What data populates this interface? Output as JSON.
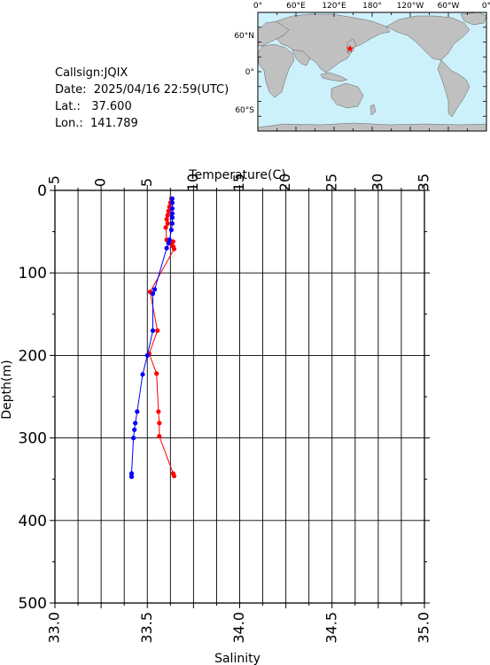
{
  "station": {
    "callsign_label": "Callsign:",
    "callsign": "JQIX",
    "date_label": "Date:",
    "date": "2025/04/16 22:59(UTC)",
    "lat_label": "Lat.:",
    "lat": "37.600",
    "lon_label": "Lon.:",
    "lon": "141.789"
  },
  "map": {
    "top_labels": [
      "0°",
      "60°E",
      "120°E",
      "180°",
      "120°W",
      "60°W",
      "0°"
    ],
    "left_labels": [
      "60°N",
      "0°",
      "60°S"
    ],
    "ocean_color": "#cdf1fb",
    "land_color": "#c0c0c0",
    "marker_color": "#ff0000",
    "marker_icon": "star-icon"
  },
  "chart_data": {
    "type": "line",
    "y_axis": {
      "label": "Depth(m)",
      "range": [
        0,
        500
      ],
      "ticks": [
        0,
        100,
        200,
        300,
        400,
        500
      ],
      "reversed": true
    },
    "x_axis_top": {
      "label": "Temperature(C)",
      "range": [
        -5,
        35
      ],
      "ticks": [
        -5,
        0,
        5,
        10,
        15,
        20,
        25,
        30,
        35
      ]
    },
    "x_axis_bottom": {
      "label": "Salinity",
      "range": [
        33.0,
        35.0
      ],
      "ticks": [
        "33.0",
        "33.5",
        "34.0",
        "34.5",
        "35.0"
      ]
    },
    "grid": true,
    "series": [
      {
        "axis": "temperature",
        "color": "#ff0000",
        "points": [
          {
            "x": 7.6,
            "y": 10
          },
          {
            "x": 7.5,
            "y": 15
          },
          {
            "x": 7.4,
            "y": 20
          },
          {
            "x": 7.3,
            "y": 25
          },
          {
            "x": 7.2,
            "y": 30
          },
          {
            "x": 7.1,
            "y": 35
          },
          {
            "x": 7.2,
            "y": 40
          },
          {
            "x": 7.0,
            "y": 45
          },
          {
            "x": 7.1,
            "y": 60
          },
          {
            "x": 7.8,
            "y": 62
          },
          {
            "x": 7.6,
            "y": 65
          },
          {
            "x": 7.8,
            "y": 68
          },
          {
            "x": 7.9,
            "y": 71
          },
          {
            "x": 5.3,
            "y": 123
          },
          {
            "x": 6.1,
            "y": 170
          },
          {
            "x": 5.2,
            "y": 198
          },
          {
            "x": 6.0,
            "y": 222
          },
          {
            "x": 6.2,
            "y": 268
          },
          {
            "x": 6.3,
            "y": 282
          },
          {
            "x": 6.3,
            "y": 298
          },
          {
            "x": 7.8,
            "y": 343
          },
          {
            "x": 7.9,
            "y": 346
          }
        ]
      },
      {
        "axis": "salinity",
        "color": "#0000ff",
        "points": [
          {
            "x": 33.635,
            "y": 10
          },
          {
            "x": 33.635,
            "y": 15
          },
          {
            "x": 33.635,
            "y": 22
          },
          {
            "x": 33.635,
            "y": 28
          },
          {
            "x": 33.635,
            "y": 33
          },
          {
            "x": 33.635,
            "y": 40
          },
          {
            "x": 33.63,
            "y": 48
          },
          {
            "x": 33.62,
            "y": 60
          },
          {
            "x": 33.615,
            "y": 64
          },
          {
            "x": 33.605,
            "y": 70
          },
          {
            "x": 33.54,
            "y": 120
          },
          {
            "x": 33.53,
            "y": 125
          },
          {
            "x": 33.53,
            "y": 170
          },
          {
            "x": 33.5,
            "y": 200
          },
          {
            "x": 33.475,
            "y": 223
          },
          {
            "x": 33.445,
            "y": 268
          },
          {
            "x": 33.435,
            "y": 282
          },
          {
            "x": 33.43,
            "y": 290
          },
          {
            "x": 33.425,
            "y": 300
          },
          {
            "x": 33.415,
            "y": 343
          },
          {
            "x": 33.415,
            "y": 347
          }
        ]
      }
    ]
  }
}
